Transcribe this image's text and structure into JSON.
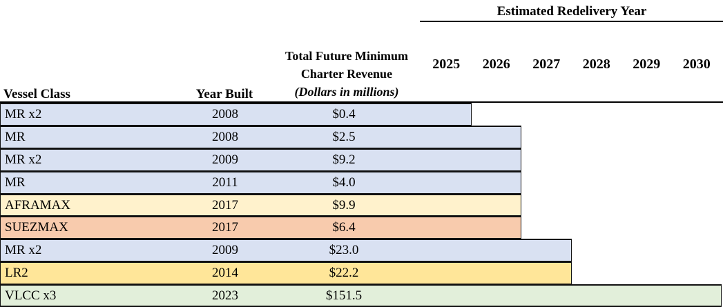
{
  "header": {
    "group_title": "Estimated Redelivery Year",
    "years": [
      "2025",
      "2026",
      "2027",
      "2028",
      "2029",
      "2030"
    ],
    "columns": {
      "vessel_class": "Vessel Class",
      "year_built": "Year Built",
      "revenue_line1": "Total Future Minimum",
      "revenue_line2": "Charter Revenue",
      "revenue_line3": "(Dollars in millions)"
    }
  },
  "rows": [
    {
      "vessel_class": "MR x2",
      "year_built": "2008",
      "revenue": "$0.4",
      "color": "#d9e1f2",
      "redelivery_year": 2025
    },
    {
      "vessel_class": "MR",
      "year_built": "2008",
      "revenue": "$2.5",
      "color": "#d9e1f2",
      "redelivery_year": 2026
    },
    {
      "vessel_class": "MR x2",
      "year_built": "2009",
      "revenue": "$9.2",
      "color": "#d9e1f2",
      "redelivery_year": 2026
    },
    {
      "vessel_class": "MR",
      "year_built": "2011",
      "revenue": "$4.0",
      "color": "#d9e1f2",
      "redelivery_year": 2026
    },
    {
      "vessel_class": "AFRAMAX",
      "year_built": "2017",
      "revenue": "$9.9",
      "color": "#fff2cc",
      "redelivery_year": 2026
    },
    {
      "vessel_class": "SUEZMAX",
      "year_built": "2017",
      "revenue": "$6.4",
      "color": "#f8cbad",
      "redelivery_year": 2026
    },
    {
      "vessel_class": "MR x2",
      "year_built": "2009",
      "revenue": "$23.0",
      "color": "#d9e1f2",
      "redelivery_year": 2027
    },
    {
      "vessel_class": "LR2",
      "year_built": "2014",
      "revenue": "$22.2",
      "color": "#ffe699",
      "redelivery_year": 2027
    },
    {
      "vessel_class": "VLCC x3",
      "year_built": "2023",
      "revenue": "$151.5",
      "color": "#e2efda",
      "redelivery_year": 2030
    }
  ],
  "colors": {
    "mr_fill": "#d9e1f2",
    "aframax_fill": "#fff2cc",
    "suezmax_fill": "#f8cbad",
    "lr2_fill": "#ffe699",
    "vlcc_fill": "#e2efda",
    "border": "#111111"
  },
  "chart_data": {
    "type": "table",
    "title": "Estimated Redelivery Year",
    "columns": [
      "Vessel Class",
      "Year Built",
      "Total Future Minimum Charter Revenue (Dollars in millions)",
      "2025",
      "2026",
      "2027",
      "2028",
      "2029",
      "2030"
    ],
    "gantt_x_range": [
      2025,
      2030
    ],
    "rows": [
      {
        "vessel_class": "MR x2",
        "year_built": 2008,
        "revenue_millions": 0.4,
        "redelivery_end_year": 2025
      },
      {
        "vessel_class": "MR",
        "year_built": 2008,
        "revenue_millions": 2.5,
        "redelivery_end_year": 2026
      },
      {
        "vessel_class": "MR x2",
        "year_built": 2009,
        "revenue_millions": 9.2,
        "redelivery_end_year": 2026
      },
      {
        "vessel_class": "MR",
        "year_built": 2011,
        "revenue_millions": 4.0,
        "redelivery_end_year": 2026
      },
      {
        "vessel_class": "AFRAMAX",
        "year_built": 2017,
        "revenue_millions": 9.9,
        "redelivery_end_year": 2026
      },
      {
        "vessel_class": "SUEZMAX",
        "year_built": 2017,
        "revenue_millions": 6.4,
        "redelivery_end_year": 2026
      },
      {
        "vessel_class": "MR x2",
        "year_built": 2009,
        "revenue_millions": 23.0,
        "redelivery_end_year": 2027
      },
      {
        "vessel_class": "LR2",
        "year_built": 2014,
        "revenue_millions": 22.2,
        "redelivery_end_year": 2027
      },
      {
        "vessel_class": "VLCC x3",
        "year_built": 2023,
        "revenue_millions": 151.5,
        "redelivery_end_year": 2030
      }
    ]
  }
}
